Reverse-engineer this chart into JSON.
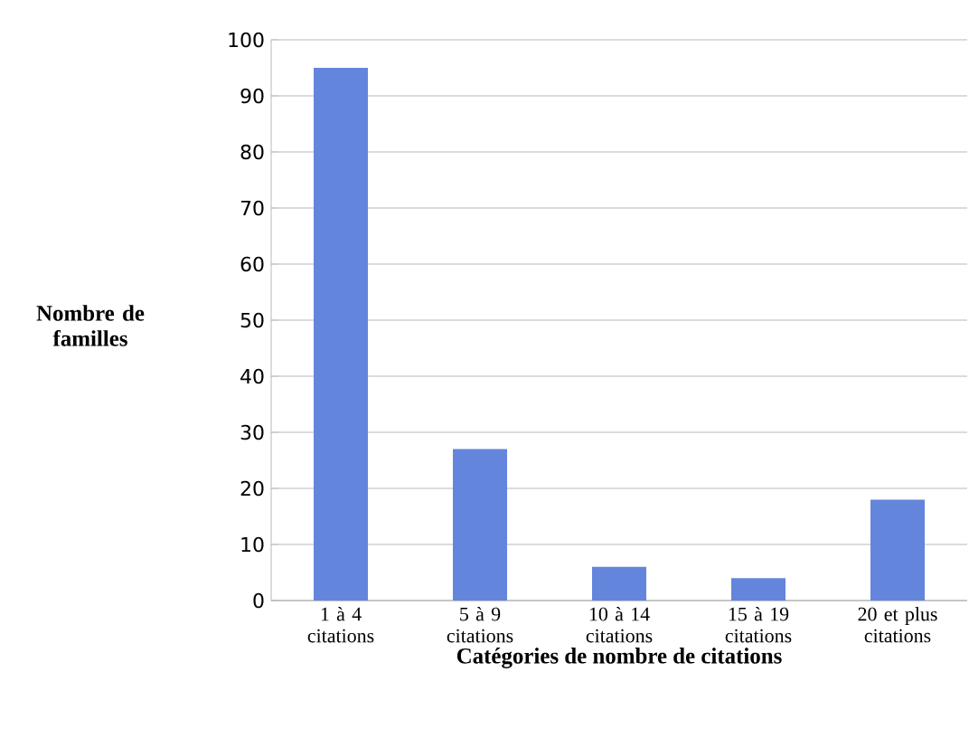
{
  "chart_data": {
    "type": "bar",
    "xlabel": "Catégories de nombre de citations",
    "ylabel": "Nombre de familles",
    "categories": [
      "1 à 4 citations",
      "5 à 9 citations",
      "10 à 14 citations",
      "15 à 19 citations",
      "20 et plus citations"
    ],
    "values": [
      95,
      27,
      6,
      4,
      18
    ],
    "color": "#6485dc",
    "ylim": [
      0,
      100
    ],
    "yticks": [
      0,
      10,
      20,
      30,
      40,
      50,
      60,
      70,
      80,
      90,
      100
    ],
    "grid": "y"
  }
}
